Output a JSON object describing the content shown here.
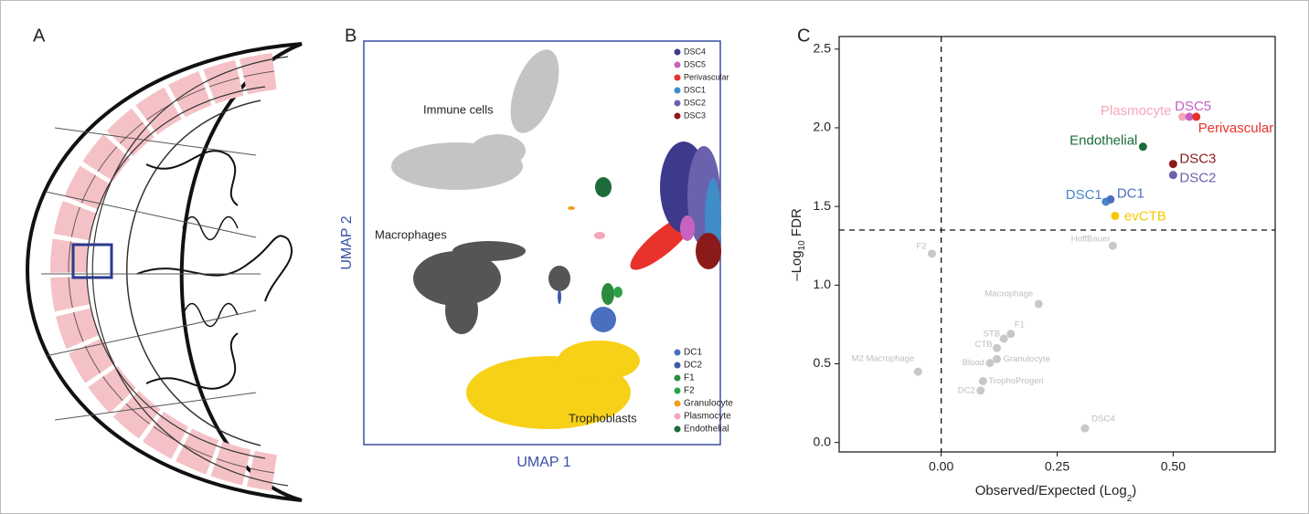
{
  "panel_labels": [
    "A",
    "B",
    "C"
  ],
  "umap": {
    "xlabel": "UMAP 1",
    "ylabel": "UMAP 2",
    "cluster_labels": [
      "Immune cells",
      "Macrophages",
      "Trophoblasts"
    ],
    "legend_top": [
      {
        "name": "DSC4",
        "color": "#3d3a8e"
      },
      {
        "name": "DSC5",
        "color": "#c862c0"
      },
      {
        "name": "Perivascular",
        "color": "#e8322b"
      },
      {
        "name": "DSC1",
        "color": "#3f8cc6"
      },
      {
        "name": "DSC2",
        "color": "#6a62ad"
      },
      {
        "name": "DSC3",
        "color": "#8b1a1a"
      }
    ],
    "legend_bottom": [
      {
        "name": "DC1",
        "color": "#4a6fbf"
      },
      {
        "name": "DC2",
        "color": "#3c5aa8"
      },
      {
        "name": "F1",
        "color": "#2e8b3e"
      },
      {
        "name": "F2",
        "color": "#2ca34a"
      },
      {
        "name": "Granulocyte",
        "color": "#f39c1f"
      },
      {
        "name": "Plasmocyte",
        "color": "#f4a7b9"
      },
      {
        "name": "Endothelial",
        "color": "#1e6b3a"
      }
    ]
  },
  "chart_data": {
    "type": "scatter",
    "xlabel": [
      "Observed/Expected (Log",
      "2",
      ")"
    ],
    "ylabel": [
      "–Log",
      "10",
      " FDR"
    ],
    "xlim": [
      -0.22,
      0.72
    ],
    "ylim": [
      -0.06,
      2.58
    ],
    "xticks": [
      {
        "value": 0,
        "label": "0.00"
      },
      0.25,
      {
        "value": 0.5,
        "label": "0.50"
      }
    ],
    "yticks": [
      {
        "value": 0,
        "label": "0.0"
      },
      0.5,
      {
        "value": 1,
        "label": "1.0"
      },
      1.5,
      {
        "value": 2,
        "label": "2.0"
      },
      2.5
    ],
    "vline": 0,
    "hline": 1.35,
    "series": [
      {
        "name": "Plasmocyte",
        "color": "#f4a7b9",
        "x": 0.52,
        "y": 2.07
      },
      {
        "name": "DSC5",
        "color": "#c65fc3",
        "x": 0.535,
        "y": 2.07
      },
      {
        "name": "Perivascular",
        "color": "#e8312a",
        "x": 0.55,
        "y": 2.07
      },
      {
        "name": "Endothelial",
        "color": "#1d6b38",
        "x": 0.435,
        "y": 1.88
      },
      {
        "name": "DSC3",
        "color": "#8b1a1a",
        "x": 0.5,
        "y": 1.77
      },
      {
        "name": "DSC2",
        "color": "#6b60ad",
        "x": 0.5,
        "y": 1.7
      },
      {
        "name": "DSC1",
        "color": "#4a86c8",
        "x": 0.355,
        "y": 1.53
      },
      {
        "name": "DC1",
        "color": "#4a6fc0",
        "x": 0.365,
        "y": 1.545
      },
      {
        "name": "evCTB",
        "color": "#f5c800",
        "x": 0.375,
        "y": 1.44
      },
      {
        "name": "HoffBauer",
        "color": "#c8c8c8",
        "x": 0.37,
        "y": 1.25
      },
      {
        "name": "F2",
        "color": "#c8c8c8",
        "x": -0.02,
        "y": 1.2
      },
      {
        "name": "Macrophage",
        "color": "#c8c8c8",
        "x": 0.21,
        "y": 0.88
      },
      {
        "name": "F1",
        "color": "#c8c8c8",
        "x": 0.15,
        "y": 0.69
      },
      {
        "name": "STB",
        "color": "#c8c8c8",
        "x": 0.135,
        "y": 0.66
      },
      {
        "name": "CTB",
        "color": "#c8c8c8",
        "x": 0.12,
        "y": 0.6
      },
      {
        "name": "Granulocyte",
        "color": "#c8c8c8",
        "x": 0.12,
        "y": 0.53
      },
      {
        "name": "Blood",
        "color": "#c8c8c8",
        "x": 0.105,
        "y": 0.505
      },
      {
        "name": "TrophoProgen",
        "color": "#c8c8c8",
        "x": 0.09,
        "y": 0.39
      },
      {
        "name": "DC2",
        "color": "#c8c8c8",
        "x": 0.085,
        "y": 0.33
      },
      {
        "name": "M2 Macrophage",
        "color": "#c8c8c8",
        "x": -0.05,
        "y": 0.45
      },
      {
        "name": "DSC4",
        "color": "#c8c8c8",
        "x": 0.31,
        "y": 0.09
      }
    ]
  }
}
